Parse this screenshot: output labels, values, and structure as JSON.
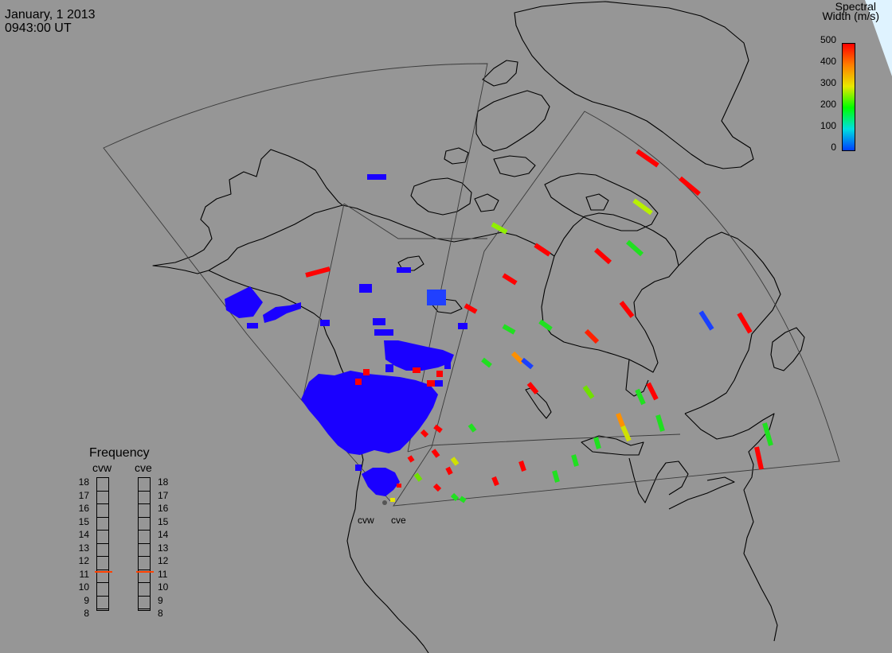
{
  "header": {
    "date": "January, 1 2013",
    "time": "0943:00 UT"
  },
  "colorbar": {
    "title_line1": "Spectral",
    "title_line2": "Width (m/s)",
    "ticks": [
      "500",
      "400",
      "300",
      "200",
      "100",
      "0"
    ],
    "gradient": [
      "#ff0000",
      "#ff7f00",
      "#e8e800",
      "#00ff00",
      "#00e0e0",
      "#0040ff"
    ]
  },
  "frequency_panel": {
    "title": "Frequency",
    "left_label": "cvw",
    "right_label": "cve",
    "ticks": [
      "18",
      "17",
      "16",
      "15",
      "14",
      "13",
      "12",
      "11",
      "10",
      "9",
      "8"
    ],
    "cvw_value_mhz": 10.9,
    "cve_value_mhz": 10.9,
    "indicator_color": "#ff4000"
  },
  "sites": {
    "west": "cvw",
    "east": "cve"
  },
  "colors": {
    "background": "#969696",
    "coastline": "#000000",
    "fov_outline": "#3a3a3a",
    "cvw_scatter": "#1a00ff"
  }
}
